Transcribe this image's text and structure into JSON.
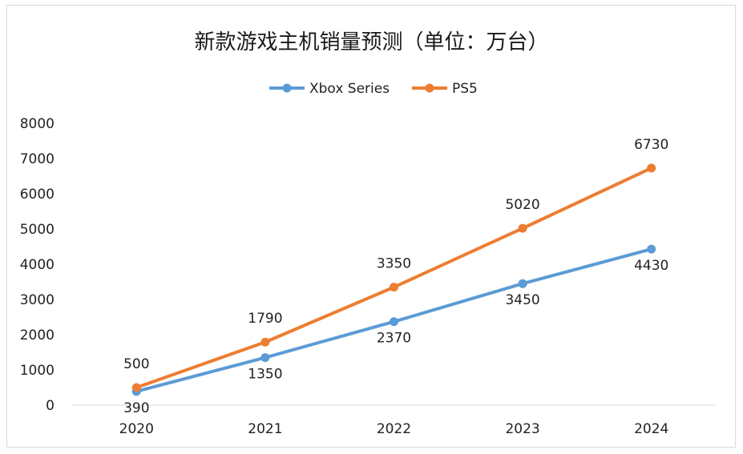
{
  "chart_data": {
    "type": "line",
    "title": "新款游戏主机销量预测（单位：万台）",
    "xlabel": "",
    "ylabel": "",
    "categories": [
      "2020",
      "2021",
      "2022",
      "2023",
      "2024"
    ],
    "ylim": [
      0,
      8000
    ],
    "yticks": [
      "0",
      "1000",
      "2000",
      "3000",
      "4000",
      "5000",
      "6000",
      "7000",
      "8000"
    ],
    "grid": false,
    "legend": "top",
    "series": [
      {
        "name": "Xbox Series",
        "color": "#5b9bd5",
        "values": [
          390,
          1350,
          2370,
          3450,
          4430
        ],
        "labels": [
          "390",
          "1350",
          "2370",
          "3450",
          "4430"
        ],
        "label_position": "below"
      },
      {
        "name": "PS5",
        "color": "#ed7d31",
        "values": [
          500,
          1790,
          3350,
          5020,
          6730
        ],
        "labels": [
          "500",
          "1790",
          "3350",
          "5020",
          "6730"
        ],
        "label_position": "above"
      }
    ]
  }
}
